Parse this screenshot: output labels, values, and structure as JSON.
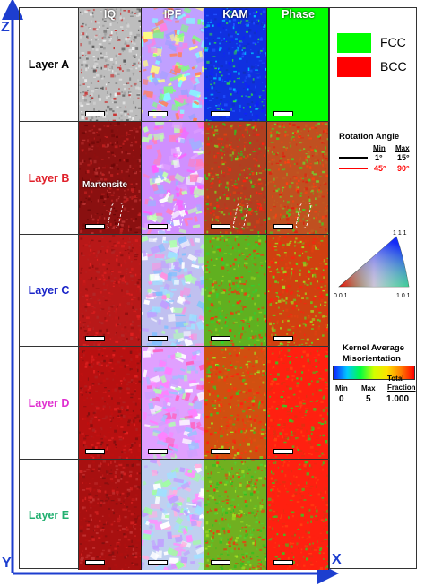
{
  "axes": {
    "z": "Z",
    "y": "Y",
    "x": "X"
  },
  "columns": [
    "IQ",
    "IPF",
    "KAM",
    "Phase"
  ],
  "layers": [
    {
      "name": "Layer A",
      "color": "#000000"
    },
    {
      "name": "Layer B",
      "color": "#e0202a"
    },
    {
      "name": "Layer C",
      "color": "#1a24c8"
    },
    {
      "name": "Layer D",
      "color": "#e030d0"
    },
    {
      "name": "Layer E",
      "color": "#22b070"
    }
  ],
  "annotation": "Martensite",
  "phase_legend": [
    {
      "label": "FCC",
      "color": "#00ff00"
    },
    {
      "label": "BCC",
      "color": "#ff0000"
    }
  ],
  "rotation_legend": {
    "title": "Rotation Angle",
    "min_label": "Min",
    "max_label": "Max",
    "rows": [
      {
        "min": "1°",
        "max": "15°",
        "color": "#000000"
      },
      {
        "min": "45°",
        "max": "90°",
        "color": "#ff0000"
      }
    ]
  },
  "ipf_triangle": {
    "corner_left": "0 0 1",
    "corner_right": "1 0 1",
    "corner_top": "1 1 1"
  },
  "kam_legend": {
    "title_line1": "Kernel Average",
    "title_line2": "Misorientation",
    "min_label": "Min",
    "max_label": "Max",
    "total_line1": "Total",
    "total_line2": "Fraction",
    "min_value": "0",
    "max_value": "5",
    "total_value": "1.000"
  }
}
